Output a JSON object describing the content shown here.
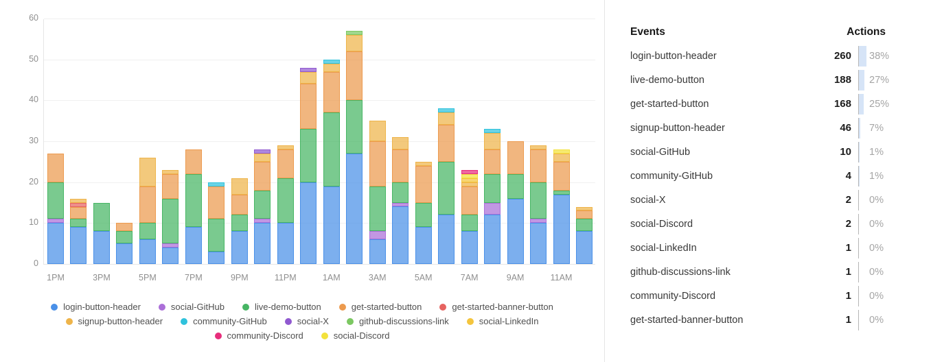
{
  "chart_data": {
    "type": "bar",
    "stacked": true,
    "title": "",
    "xlabel": "",
    "ylabel": "",
    "ylim": [
      0,
      60
    ],
    "yticks": [
      0,
      10,
      20,
      30,
      40,
      50,
      60
    ],
    "grid": true,
    "legend_position": "bottom",
    "categories": [
      "1PM",
      "2PM",
      "3PM",
      "4PM",
      "5PM",
      "6PM",
      "7PM",
      "8PM",
      "9PM",
      "10PM",
      "11PM",
      "12AM",
      "1AM",
      "2AM",
      "3AM",
      "4AM",
      "5AM",
      "6AM",
      "7AM",
      "8AM",
      "9AM",
      "10AM",
      "11AM",
      "12PM"
    ],
    "x_tick_labels": [
      "1PM",
      "3PM",
      "5PM",
      "7PM",
      "9PM",
      "11PM",
      "1AM",
      "3AM",
      "5AM",
      "7AM",
      "9AM",
      "11AM"
    ],
    "series": [
      {
        "name": "login-button-header",
        "color": "#4a90e8",
        "values": [
          10,
          9,
          8,
          5,
          6,
          4,
          9,
          3,
          8,
          10,
          10,
          20,
          19,
          27,
          6,
          14,
          9,
          12,
          8,
          12,
          16,
          10,
          17,
          8
        ]
      },
      {
        "name": "social-GitHub",
        "color": "#ab6fd8",
        "values": [
          1,
          0,
          0,
          0,
          0,
          1,
          0,
          0,
          0,
          1,
          0,
          0,
          0,
          0,
          2,
          1,
          0,
          0,
          0,
          3,
          0,
          1,
          0,
          0
        ]
      },
      {
        "name": "live-demo-button",
        "color": "#47b564",
        "values": [
          9,
          2,
          7,
          3,
          4,
          11,
          13,
          8,
          4,
          7,
          11,
          13,
          18,
          13,
          11,
          5,
          6,
          13,
          4,
          7,
          6,
          9,
          1,
          3
        ]
      },
      {
        "name": "get-started-button",
        "color": "#ec9a4e",
        "values": [
          7,
          3,
          0,
          2,
          9,
          6,
          6,
          8,
          5,
          7,
          7,
          11,
          10,
          12,
          11,
          8,
          9,
          9,
          7,
          6,
          8,
          8,
          7,
          2
        ]
      },
      {
        "name": "get-started-banner-button",
        "color": "#e66360",
        "values": [
          0,
          1,
          0,
          0,
          0,
          0,
          0,
          0,
          0,
          0,
          0,
          0,
          0,
          0,
          0,
          0,
          0,
          0,
          0,
          0,
          0,
          0,
          0,
          0
        ]
      },
      {
        "name": "signup-button-header",
        "color": "#eeb44a",
        "values": [
          0,
          1,
          0,
          0,
          7,
          1,
          0,
          0,
          4,
          2,
          1,
          3,
          2,
          4,
          5,
          3,
          1,
          3,
          1,
          4,
          0,
          1,
          2,
          1
        ]
      },
      {
        "name": "community-GitHub",
        "color": "#2fc2dc",
        "values": [
          0,
          0,
          0,
          0,
          0,
          0,
          0,
          1,
          0,
          0,
          0,
          0,
          1,
          0,
          0,
          0,
          0,
          1,
          0,
          1,
          0,
          0,
          0,
          0
        ]
      },
      {
        "name": "social-X",
        "color": "#9059d0",
        "values": [
          0,
          0,
          0,
          0,
          0,
          0,
          0,
          0,
          0,
          1,
          0,
          1,
          0,
          0,
          0,
          0,
          0,
          0,
          0,
          0,
          0,
          0,
          0,
          0
        ]
      },
      {
        "name": "github-discussions-link",
        "color": "#7cc862",
        "values": [
          0,
          0,
          0,
          0,
          0,
          0,
          0,
          0,
          0,
          0,
          0,
          0,
          0,
          1,
          0,
          0,
          0,
          0,
          0,
          0,
          0,
          0,
          0,
          0
        ]
      },
      {
        "name": "social-LinkedIn",
        "color": "#f4c53d",
        "values": [
          0,
          0,
          0,
          0,
          0,
          0,
          0,
          0,
          0,
          0,
          0,
          0,
          0,
          0,
          0,
          0,
          0,
          0,
          1,
          0,
          0,
          0,
          0,
          0
        ]
      },
      {
        "name": "social-Discord",
        "color": "#f3e23c",
        "values": [
          0,
          0,
          0,
          0,
          0,
          0,
          0,
          0,
          0,
          0,
          0,
          0,
          0,
          0,
          0,
          0,
          0,
          0,
          1,
          0,
          0,
          0,
          1,
          0
        ]
      },
      {
        "name": "community-Discord",
        "color": "#e72e7c",
        "values": [
          0,
          0,
          0,
          0,
          0,
          0,
          0,
          0,
          0,
          0,
          0,
          0,
          0,
          0,
          0,
          0,
          0,
          0,
          1,
          0,
          0,
          0,
          0,
          0
        ]
      }
    ],
    "legend_rows": [
      [
        "login-button-header",
        "social-GitHub",
        "live-demo-button",
        "get-started-button",
        "get-started-banner-button"
      ],
      [
        "signup-button-header",
        "community-GitHub",
        "social-X",
        "github-discussions-link",
        "social-LinkedIn"
      ],
      [
        "community-Discord",
        "social-Discord"
      ]
    ]
  },
  "events_table": {
    "col_event": "Events",
    "col_actions": "Actions",
    "indicator_color": "#d6e4f7",
    "rows": [
      {
        "label": "login-button-header",
        "count": "260",
        "pct": "38%"
      },
      {
        "label": "live-demo-button",
        "count": "188",
        "pct": "27%"
      },
      {
        "label": "get-started-button",
        "count": "168",
        "pct": "25%"
      },
      {
        "label": "signup-button-header",
        "count": "46",
        "pct": "7%"
      },
      {
        "label": "social-GitHub",
        "count": "10",
        "pct": "1%"
      },
      {
        "label": "community-GitHub",
        "count": "4",
        "pct": "1%"
      },
      {
        "label": "social-X",
        "count": "2",
        "pct": "0%"
      },
      {
        "label": "social-Discord",
        "count": "2",
        "pct": "0%"
      },
      {
        "label": "social-LinkedIn",
        "count": "1",
        "pct": "0%"
      },
      {
        "label": "github-discussions-link",
        "count": "1",
        "pct": "0%"
      },
      {
        "label": "community-Discord",
        "count": "1",
        "pct": "0%"
      },
      {
        "label": "get-started-banner-button",
        "count": "1",
        "pct": "0%"
      }
    ]
  }
}
